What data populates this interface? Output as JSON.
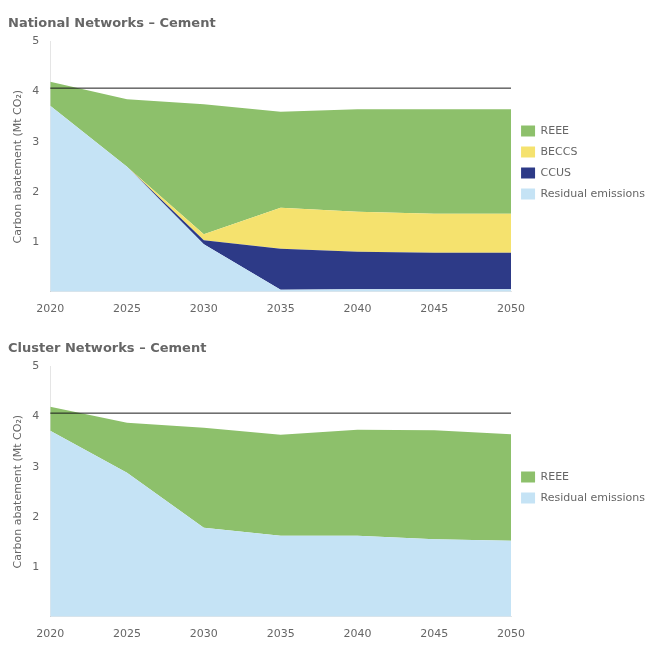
{
  "chart_data": [
    {
      "type": "area",
      "title": "National Networks – Cement",
      "x": [
        2020,
        2025,
        2030,
        2035,
        2040,
        2045,
        2050
      ],
      "series": [
        {
          "name": "Residual emissions",
          "color": "#c5e3f5",
          "values": [
            3.72,
            2.5,
            0.95,
            0.04,
            0.05,
            0.05,
            0.05
          ]
        },
        {
          "name": "CCUS",
          "color": "#2d3a87",
          "values": [
            0.0,
            0.0,
            0.08,
            0.82,
            0.75,
            0.73,
            0.73
          ]
        },
        {
          "name": "BECCS",
          "color": "#f5e26e",
          "values": [
            0.0,
            0.0,
            0.12,
            0.82,
            0.8,
            0.78,
            0.78
          ]
        },
        {
          "name": "REEE",
          "color": "#8dc06b",
          "values": [
            0.48,
            1.35,
            2.6,
            1.92,
            2.05,
            2.09,
            2.09
          ]
        }
      ],
      "stacked": true,
      "xlim": [
        2020,
        2050
      ],
      "xticks": [
        2020,
        2025,
        2030,
        2035,
        2040,
        2045,
        2050
      ],
      "ylim": [
        0,
        5
      ],
      "yticks": [
        1,
        2,
        3,
        4,
        5
      ],
      "ylabel": "Carbon abatement (Mt CO₂)",
      "reference_line": {
        "y": 4.07,
        "color": "#1a1a1a"
      },
      "legend": "right",
      "grid": false
    },
    {
      "type": "area",
      "title": "Cluster Networks – Cement",
      "x": [
        2020,
        2025,
        2030,
        2035,
        2040,
        2045,
        2050
      ],
      "series": [
        {
          "name": "Residual emissions",
          "color": "#c5e3f5",
          "values": [
            3.72,
            2.88,
            1.78,
            1.62,
            1.62,
            1.55,
            1.52
          ]
        },
        {
          "name": "REEE",
          "color": "#8dc06b",
          "values": [
            0.48,
            1.0,
            2.0,
            2.02,
            2.12,
            2.18,
            2.13
          ]
        }
      ],
      "stacked": true,
      "xlim": [
        2020,
        2050
      ],
      "xticks": [
        2020,
        2025,
        2030,
        2035,
        2040,
        2045,
        2050
      ],
      "ylim": [
        0,
        5
      ],
      "yticks": [
        1,
        2,
        3,
        4,
        5
      ],
      "ylabel": "Carbon abatement (Mt CO₂)",
      "reference_line": {
        "y": 4.07,
        "color": "#1a1a1a"
      },
      "legend": "right",
      "grid": false
    }
  ]
}
